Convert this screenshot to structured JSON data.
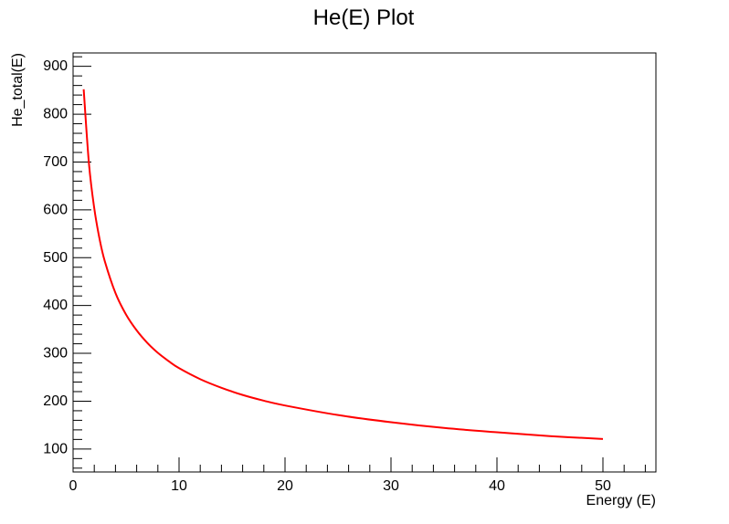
{
  "chart_data": {
    "type": "line",
    "title": "He(E) Plot",
    "xlabel": "Energy (E)",
    "ylabel": "He_total(E)",
    "xlim": [
      0,
      55
    ],
    "ylim": [
      52,
      928
    ],
    "x_major_ticks": [
      0,
      10,
      20,
      30,
      40,
      50
    ],
    "y_major_ticks": [
      100,
      200,
      300,
      400,
      500,
      600,
      700,
      800,
      900
    ],
    "grid": false,
    "legend": "none",
    "series": [
      {
        "color": "#ff0000",
        "x": [
          1,
          1.5,
          2,
          2.5,
          3,
          4,
          5,
          6,
          7,
          8,
          9,
          10,
          12,
          14,
          16,
          18,
          20,
          25,
          30,
          35,
          40,
          45,
          50
        ],
        "y": [
          852,
          696,
          603,
          539,
          492,
          426,
          381,
          348,
          322,
          301,
          284,
          269,
          246,
          228,
          213,
          201,
          191,
          171,
          156,
          144,
          135,
          127,
          121
        ]
      }
    ]
  }
}
